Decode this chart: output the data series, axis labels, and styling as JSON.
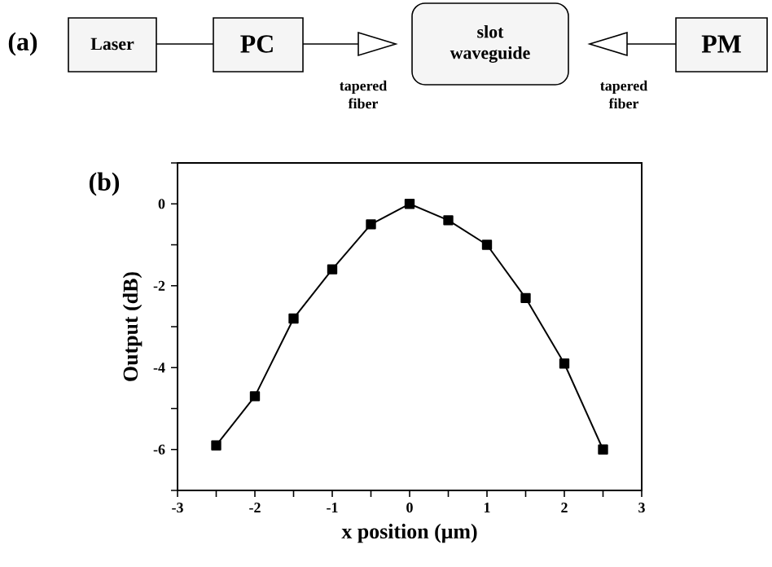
{
  "chart_data": {
    "type": "line",
    "xlabel": "x position (μm)",
    "ylabel": "Output (dB)",
    "x": [
      -2.5,
      -2,
      -1.5,
      -1,
      -0.5,
      0,
      0.5,
      1,
      1.5,
      2,
      2.5
    ],
    "series": [
      {
        "color": "#000000",
        "values": [
          -5.9,
          -4.7,
          -2.8,
          -1.6,
          -0.5,
          0,
          -0.4,
          -1.0,
          -2.3,
          -3.9,
          -6.0
        ]
      }
    ],
    "xlim": [
      -3,
      3
    ],
    "ylim": [
      -7,
      1
    ],
    "xticks": [
      -3,
      {
        "value": -2.5,
        "label": null
      },
      -2,
      {
        "value": -1.5,
        "label": null
      },
      -1,
      {
        "value": -0.5,
        "label": null
      },
      0,
      {
        "value": 0.5,
        "label": null
      },
      1,
      {
        "value": 1.5,
        "label": null
      },
      2,
      {
        "value": 2.5,
        "label": null
      },
      3
    ],
    "yticks": [
      {
        "value": -7,
        "label": null
      },
      -6,
      {
        "value": -5,
        "label": null
      },
      -4,
      {
        "value": -3,
        "label": null
      },
      -2,
      {
        "value": -1,
        "label": null
      },
      0,
      {
        "value": 1,
        "label": null
      }
    ],
    "marker": "square",
    "line_style": "solid",
    "annotations": [
      "(a)",
      "Laser",
      "PC",
      "slot waveguide",
      "PM",
      "tapered fiber",
      "tapered fiber",
      "(b)"
    ]
  }
}
